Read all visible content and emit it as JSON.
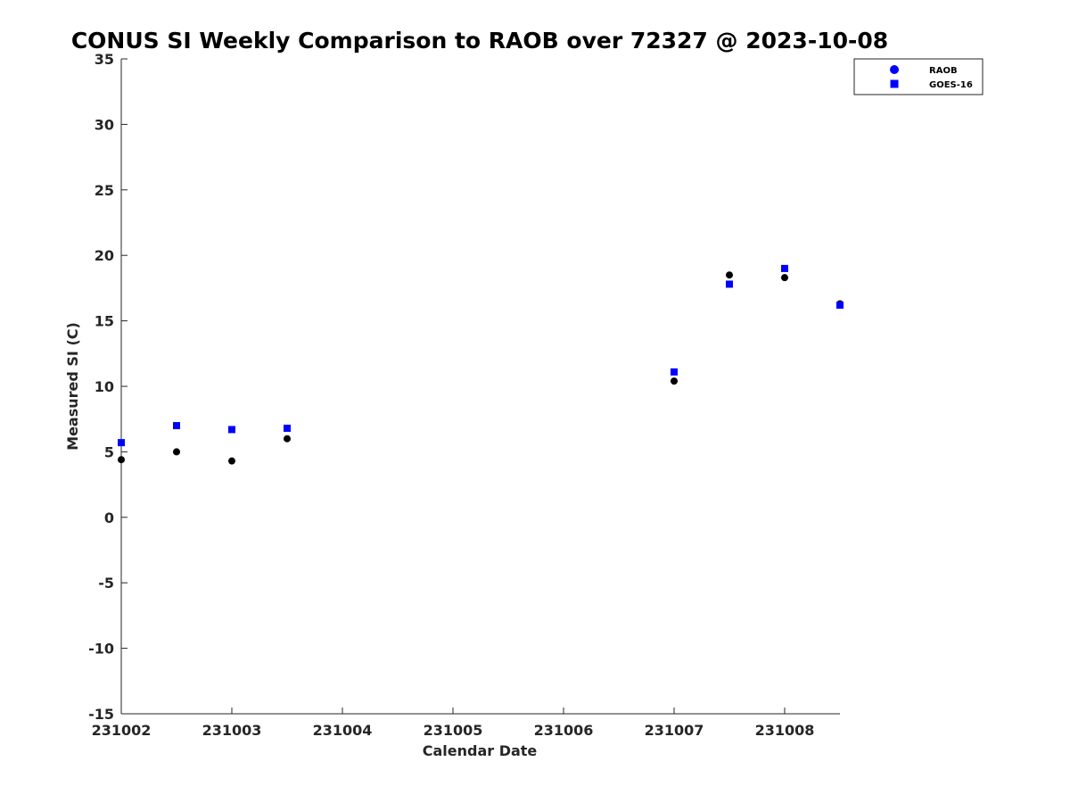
{
  "chart_data": {
    "type": "scatter",
    "title": "CONUS SI Weekly Comparison to RAOB over 72327 @ 2023-10-08",
    "xlabel": "Calendar Date",
    "ylabel": "Measured SI (C)",
    "xlim": [
      0,
      6.5
    ],
    "ylim": [
      -15,
      35
    ],
    "x_ticks": [
      {
        "value": 0,
        "label": "231002"
      },
      {
        "value": 1,
        "label": "231003"
      },
      {
        "value": 2,
        "label": "231004"
      },
      {
        "value": 3,
        "label": "231005"
      },
      {
        "value": 4,
        "label": "231006"
      },
      {
        "value": 5,
        "label": "231007"
      },
      {
        "value": 6,
        "label": "231008"
      }
    ],
    "y_ticks": [
      35,
      30,
      25,
      20,
      15,
      10,
      5,
      0,
      -5,
      -10,
      -15
    ],
    "grid": false,
    "legend_position": "top-right",
    "series": [
      {
        "name": "RAOB",
        "marker": "circle",
        "legend_color": "#0000ff",
        "color": "#000000",
        "x": [
          0,
          0.5,
          1,
          1.5,
          5,
          5.5,
          6,
          6.5
        ],
        "y": [
          4.4,
          5.0,
          4.3,
          6.0,
          10.4,
          18.5,
          18.3,
          16.3
        ]
      },
      {
        "name": "GOES-16",
        "marker": "square",
        "legend_color": "#0000ff",
        "color": "#0000ff",
        "x": [
          0,
          0.5,
          1,
          1.5,
          5,
          5.5,
          6,
          6.5
        ],
        "y": [
          5.7,
          7.0,
          6.7,
          6.8,
          11.1,
          17.8,
          19.0,
          16.2
        ]
      }
    ]
  }
}
